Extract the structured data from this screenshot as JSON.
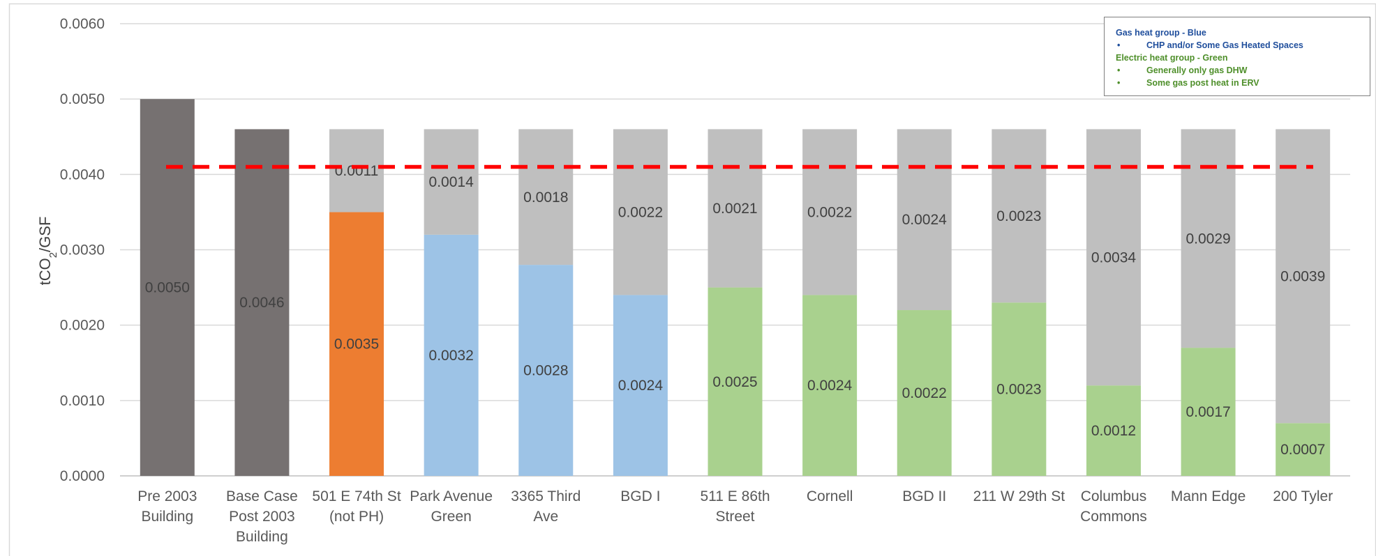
{
  "chart_data": {
    "type": "bar",
    "stacked": true,
    "ylabel": "tCO2/GSF",
    "ylim": [
      0,
      0.006
    ],
    "yticks": [
      "0.0000",
      "0.0010",
      "0.0020",
      "0.0030",
      "0.0040",
      "0.0050",
      "0.0060"
    ],
    "grid": true,
    "categories": [
      [
        "Pre 2003",
        "Building"
      ],
      [
        "Base Case",
        "Post 2003",
        "Building"
      ],
      [
        "501 E 74th St",
        "(not PH)"
      ],
      [
        "Park Avenue",
        "Green"
      ],
      [
        "3365 Third",
        "Ave"
      ],
      [
        "BGD I"
      ],
      [
        "511 E 86th",
        "Street"
      ],
      [
        "Cornell"
      ],
      [
        "BGD II"
      ],
      [
        "211 W 29th St"
      ],
      [
        "Columbus",
        "Commons"
      ],
      [
        "Mann Edge"
      ],
      [
        "200 Tyler"
      ]
    ],
    "bottom_values": [
      0.005,
      0.0046,
      0.0035,
      0.0032,
      0.0028,
      0.0024,
      0.0025,
      0.0024,
      0.0022,
      0.0023,
      0.0012,
      0.0017,
      0.0007
    ],
    "bottom_labels": [
      "0.0050",
      "0.0046",
      "0.0035",
      "0.0032",
      "0.0028",
      "0.0024",
      "0.0025",
      "0.0024",
      "0.0022",
      "0.0023",
      "0.0012",
      "0.0017",
      "0.0007"
    ],
    "bottom_colors": [
      "#767171",
      "#767171",
      "#ed7d31",
      "#9dc3e6",
      "#9dc3e6",
      "#9dc3e6",
      "#a9d18e",
      "#a9d18e",
      "#a9d18e",
      "#a9d18e",
      "#a9d18e",
      "#a9d18e",
      "#a9d18e"
    ],
    "top_values": [
      null,
      null,
      0.0011,
      0.0014,
      0.0018,
      0.0022,
      0.0021,
      0.0022,
      0.0024,
      0.0023,
      0.0034,
      0.0029,
      0.0039
    ],
    "top_labels": [
      null,
      null,
      "0.0011",
      "0.0014",
      "0.0018",
      "0.0022",
      "0.0021",
      "0.0022",
      "0.0024",
      "0.0023",
      "0.0034",
      "0.0029",
      "0.0039"
    ],
    "top_color": "#bfbfbf",
    "reference_line": {
      "value": 0.0041,
      "color": "#ff0000",
      "style": "dashed"
    },
    "legend": {
      "placement": "top-right",
      "lines": [
        {
          "text": "Gas heat group - Blue",
          "bullet": false,
          "color": "#1f4e9c"
        },
        {
          "text": "CHP and/or Some Gas Heated Spaces",
          "bullet": true,
          "color": "#1f4e9c"
        },
        {
          "text": "Electric heat group - Green",
          "bullet": false,
          "color": "#4e8f2a"
        },
        {
          "text": "Generally only gas DHW",
          "bullet": true,
          "color": "#4e8f2a"
        },
        {
          "text": "Some gas post heat in ERV",
          "bullet": true,
          "color": "#4e8f2a"
        }
      ]
    }
  }
}
